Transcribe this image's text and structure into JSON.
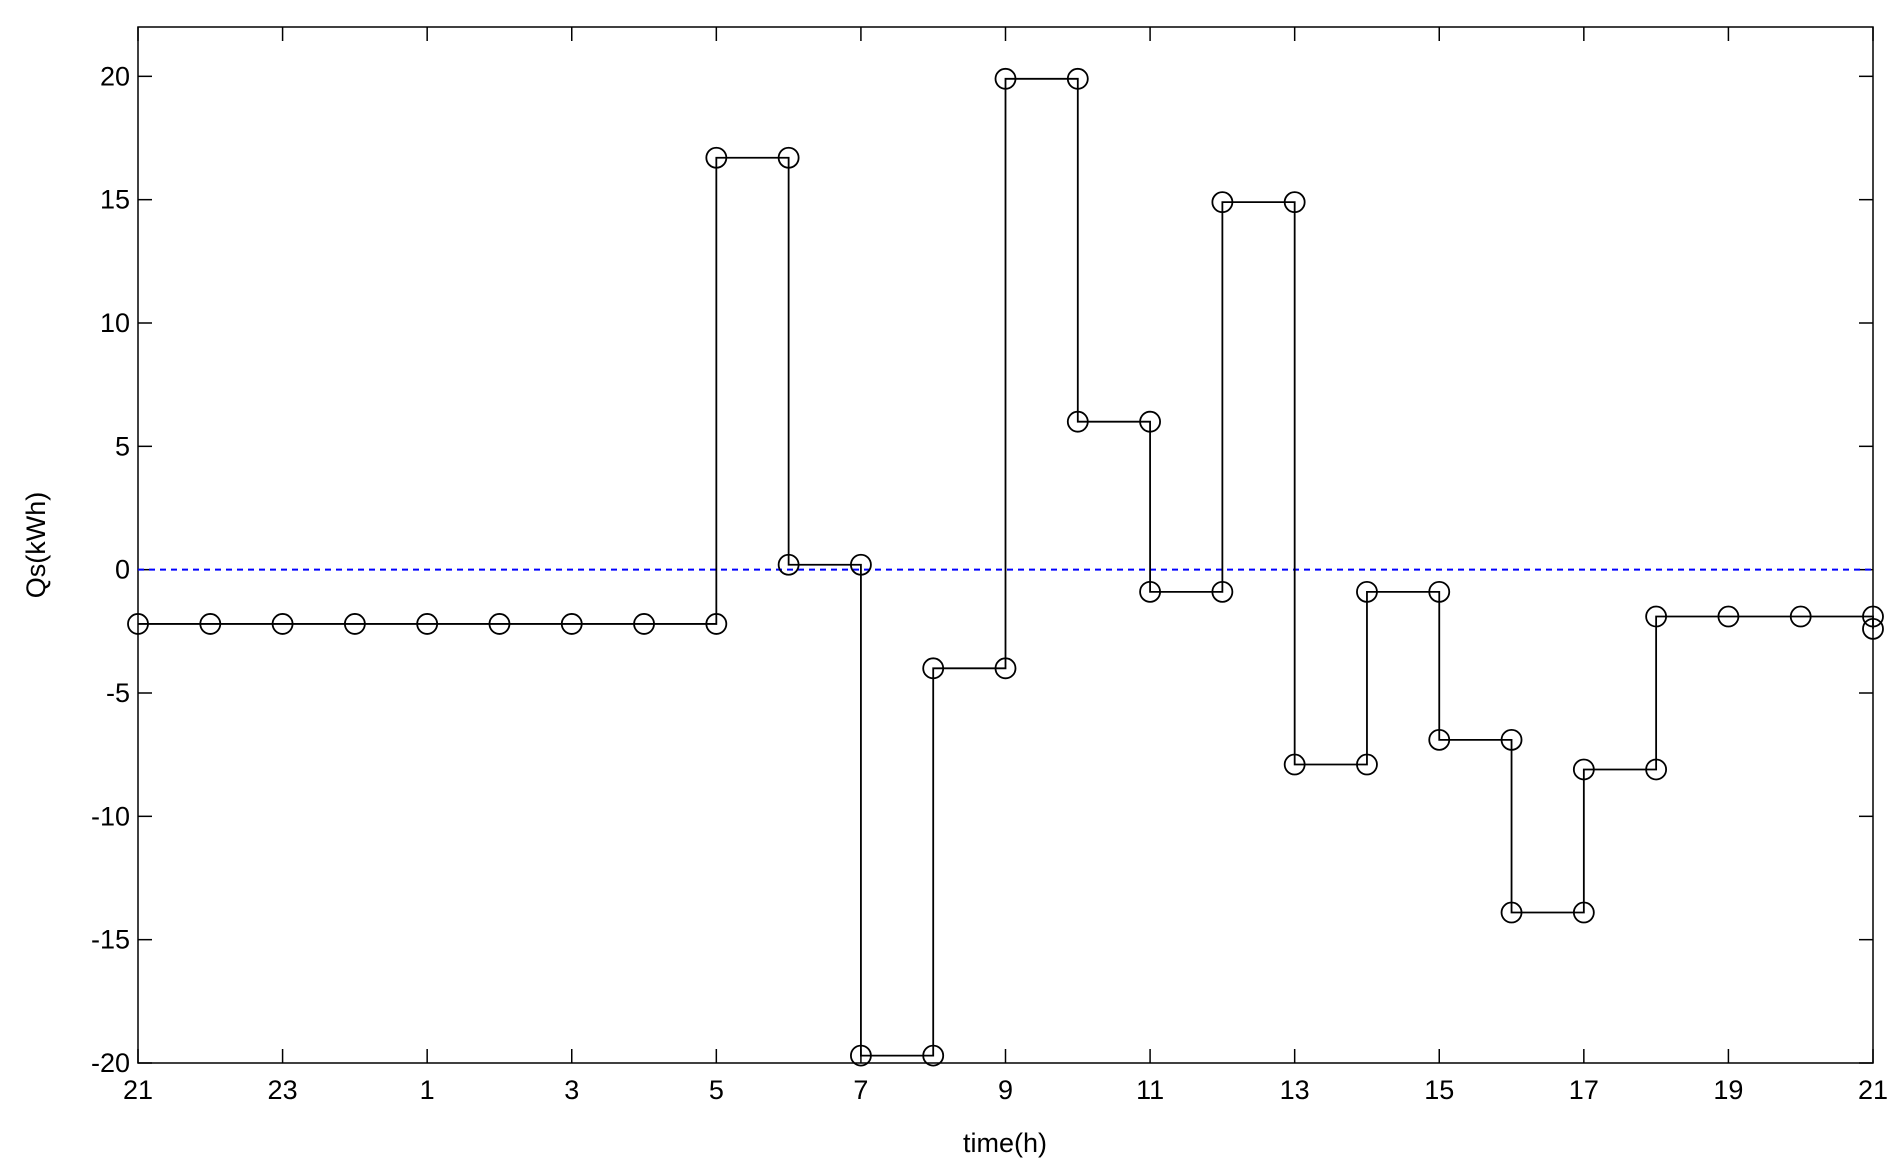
{
  "chart_data": {
    "type": "line",
    "xlabel": "time(h)",
    "ylabel": "Qs(kWh)",
    "x": [
      0,
      1,
      2,
      3,
      4,
      5,
      6,
      7,
      8,
      8,
      9,
      9,
      10,
      10,
      11,
      11,
      12,
      12,
      13,
      13,
      14,
      14,
      15,
      15,
      16,
      16,
      17,
      17,
      18,
      18,
      19,
      19,
      20,
      20,
      21,
      21,
      22,
      23,
      24,
      24
    ],
    "series": [
      {
        "color": "#000000",
        "marker": "circle",
        "values": [
          -2.2,
          -2.2,
          -2.2,
          -2.2,
          -2.2,
          -2.2,
          -2.2,
          -2.2,
          -2.2,
          16.7,
          16.7,
          0.2,
          0.2,
          -19.7,
          -19.7,
          -4,
          -4,
          19.9,
          19.9,
          6,
          6,
          -0.9,
          -0.9,
          14.9,
          14.9,
          -7.9,
          -7.9,
          -0.9,
          -0.9,
          -6.9,
          -6.9,
          -13.9,
          -13.9,
          -8.1,
          -8.1,
          -1.9,
          -1.9,
          -1.9,
          -1.9,
          -2.4
        ]
      }
    ],
    "xlim": [
      0,
      24
    ],
    "xticks": [
      {
        "value": 0,
        "label": "21"
      },
      {
        "value": 2,
        "label": "23"
      },
      {
        "value": 4,
        "label": "1"
      },
      {
        "value": 6,
        "label": "3"
      },
      {
        "value": 8,
        "label": "5"
      },
      {
        "value": 10,
        "label": "7"
      },
      {
        "value": 12,
        "label": "9"
      },
      {
        "value": 14,
        "label": "11"
      },
      {
        "value": 16,
        "label": "13"
      },
      {
        "value": 18,
        "label": "15"
      },
      {
        "value": 20,
        "label": "17"
      },
      {
        "value": 22,
        "label": "19"
      },
      {
        "value": 24,
        "label": "21"
      }
    ],
    "ylim": [
      -20,
      22
    ],
    "yticks": [
      -20,
      -15,
      -10,
      -5,
      0,
      5,
      10,
      15,
      20
    ],
    "reference_line": {
      "y": 0,
      "color": "#0000ff",
      "style": "dashed"
    },
    "grid": false
  }
}
